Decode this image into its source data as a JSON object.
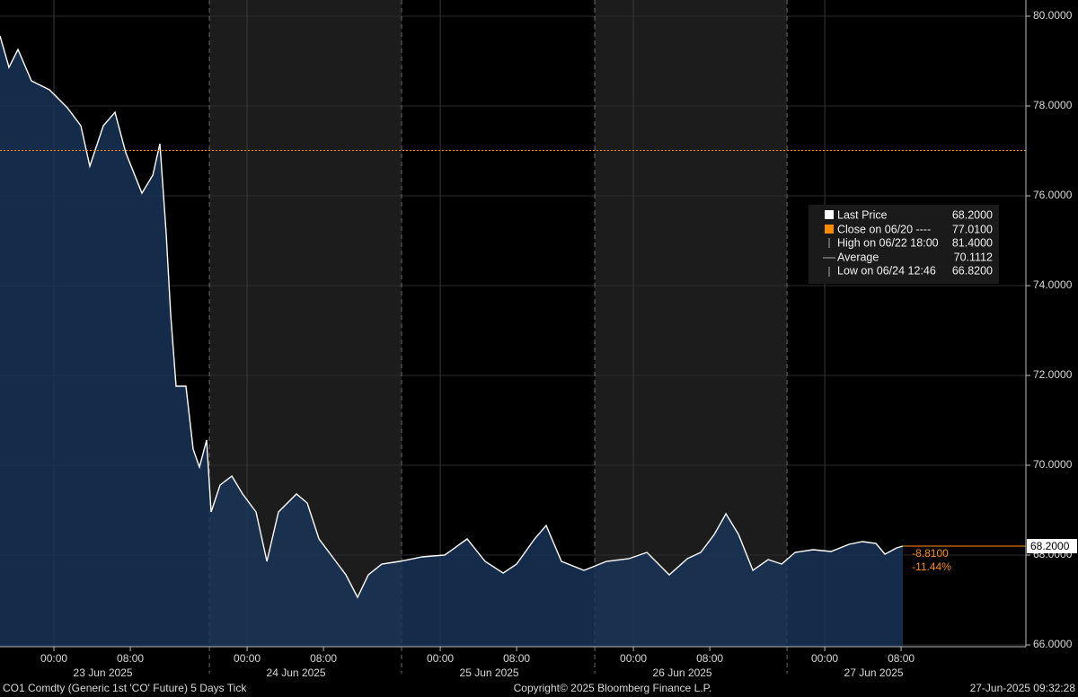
{
  "chart_data": {
    "type": "line",
    "series": [
      {
        "name": "Last Price",
        "color": "#ffffff",
        "x": [
          -5.65,
          -4.71,
          -3.77,
          -2.36,
          -0.47,
          1.41,
          2.82,
          3.76,
          5.17,
          6.39,
          7.52,
          9.22,
          10.35,
          11.1,
          11.76,
          12.23,
          12.79,
          13.83,
          14.58,
          15.24,
          15.99,
          16.46,
          17.4,
          18.63,
          19.76,
          21.17,
          22.3,
          23.52,
          25.4,
          26.53,
          27.76,
          29.17,
          30.58,
          31.8,
          32.93,
          34.34,
          36.22,
          38.58,
          40.93,
          43.28,
          45.16,
          47.05,
          48.46,
          50.34,
          51.56,
          53.16,
          55.52,
          57.87,
          60.22,
          62.1,
          64.45,
          66.34,
          67.75,
          69.16,
          70.38,
          71.7,
          73.21,
          74.81,
          76.22,
          77.63,
          79.51,
          81.39,
          83.27,
          84.69,
          86.1,
          87.04,
          88.26,
          88.92
        ],
        "values": [
          79.56,
          78.86,
          79.26,
          78.56,
          78.36,
          77.96,
          77.56,
          76.66,
          77.56,
          77.86,
          76.96,
          76.06,
          76.46,
          77.16,
          75.16,
          73.36,
          71.76,
          71.76,
          70.36,
          69.96,
          70.56,
          68.96,
          69.56,
          69.76,
          69.36,
          68.96,
          67.86,
          68.96,
          69.36,
          69.16,
          68.36,
          67.96,
          67.56,
          67.06,
          67.56,
          67.8,
          67.86,
          67.96,
          68.0,
          68.36,
          67.86,
          67.6,
          67.8,
          68.36,
          68.66,
          67.86,
          67.66,
          67.86,
          67.92,
          68.06,
          67.56,
          67.92,
          68.06,
          68.46,
          68.92,
          68.46,
          67.66,
          67.9,
          67.8,
          68.06,
          68.12,
          68.08,
          68.24,
          68.3,
          68.26,
          68.02,
          68.16,
          68.2
        ]
      }
    ],
    "xlim": [
      -5.65,
      101.8
    ],
    "ylim": [
      65.96,
      80.36
    ],
    "xticks": [
      {
        "value": 0,
        "label": "00:00"
      },
      {
        "value": 8,
        "label": "08:00"
      },
      {
        "value": 20.23,
        "label": "00:00"
      },
      {
        "value": 28.23,
        "label": "08:00"
      },
      {
        "value": 40.46,
        "label": "00:00"
      },
      {
        "value": 48.46,
        "label": "08:00"
      },
      {
        "value": 60.69,
        "label": "00:00"
      },
      {
        "value": 68.69,
        "label": "08:00"
      },
      {
        "value": 80.73,
        "label": "00:00"
      },
      {
        "value": 88.73,
        "label": "08:00"
      }
    ],
    "day_labels": [
      "23 Jun 2025",
      "24 Jun 2025",
      "25 Jun 2025",
      "26 Jun 2025",
      "27 Jun 2025"
    ],
    "day_separators": [
      16.28,
      36.41,
      56.64,
      76.78
    ],
    "yticks": [
      {
        "value": 66,
        "label": "66.0000"
      },
      {
        "value": 68,
        "label": "68.0000"
      },
      {
        "value": 70,
        "label": "70.0000"
      },
      {
        "value": 72,
        "label": "72.0000"
      },
      {
        "value": 74,
        "label": "74.0000"
      },
      {
        "value": 76,
        "label": "76.0000"
      },
      {
        "value": 78,
        "label": "78.0000"
      },
      {
        "value": 80,
        "label": "80.0000"
      }
    ],
    "reference_line": {
      "value": 77.01,
      "color": "#ff8c00"
    },
    "last_price": {
      "value": 68.2,
      "label": "68.2000"
    },
    "change_labels": [
      "-8.8100",
      "-11.44%"
    ],
    "legend": [
      {
        "label": "Last Price",
        "value": "68.2000"
      },
      {
        "label": "Close on 06/20 ----",
        "value": "77.0100"
      },
      {
        "label": "High on 06/22 18:00",
        "value": "81.4000"
      },
      {
        "label": "Average",
        "value": "70.1112"
      },
      {
        "label": "Low on 06/24 12:46",
        "value": "66.8200"
      }
    ],
    "footer": {
      "left": "CO1 Comdty (Generic 1st 'CO' Future) 5 Days  Tick",
      "center": "Copyright© 2025 Bloomberg Finance L.P.",
      "right": "27-Jun-2025 09:32:28"
    }
  }
}
